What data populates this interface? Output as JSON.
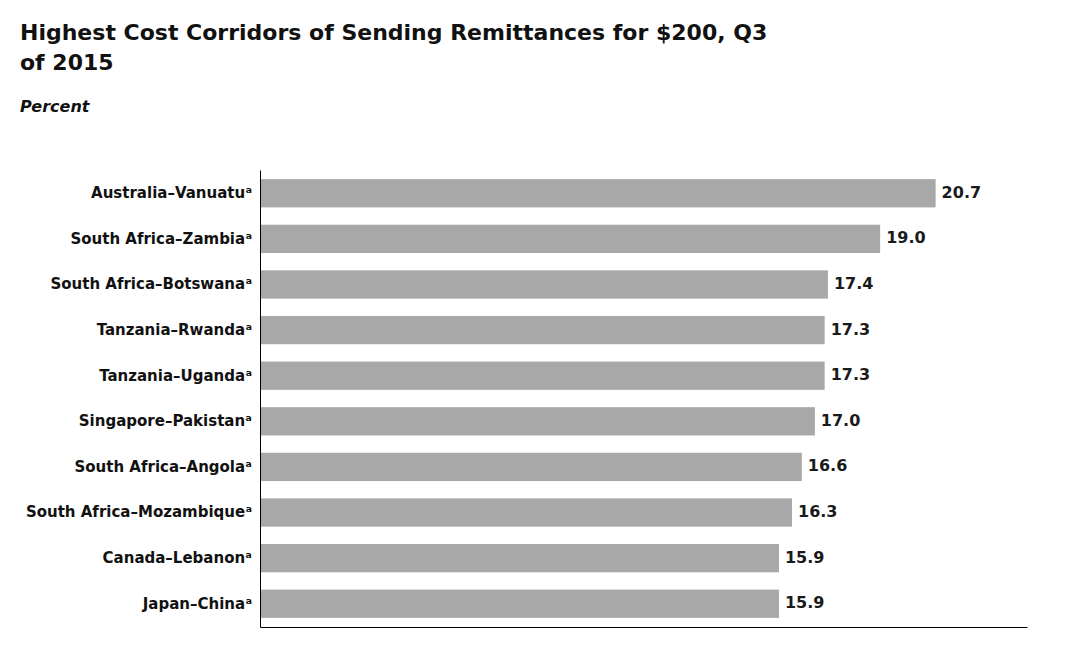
{
  "chart_data": {
    "type": "bar",
    "title": "Highest Cost Corridors of Sending Remittances for $200, Q3\nof 2015",
    "subtitle": "Percent",
    "orientation": "horizontal",
    "categories": [
      "Australia–Vanuatuᵃ",
      "South Africa–Zambiaᵃ",
      "South Africa–Botswanaᵃ",
      "Tanzania–Rwandaᵃ",
      "Tanzania–Ugandaᵃ",
      "Singapore–Pakistanᵃ",
      "South Africa–Angolaᵃ",
      "South Africa–Mozambiqueᵃ",
      "Canada–Lebanonᵃ",
      "Japan–Chinaᵃ"
    ],
    "values": [
      20.7,
      19.0,
      17.4,
      17.3,
      17.3,
      17.0,
      16.6,
      16.3,
      15.9,
      15.9
    ],
    "value_labels": [
      "20.7",
      "19.0",
      "17.4",
      "17.3",
      "17.3",
      "17.0",
      "16.6",
      "16.3",
      "15.9",
      "15.9"
    ],
    "color": "#a8a8a8",
    "xlim": [
      0,
      23.5
    ],
    "data_labels": true,
    "tick_labels": "y",
    "grid": false
  }
}
